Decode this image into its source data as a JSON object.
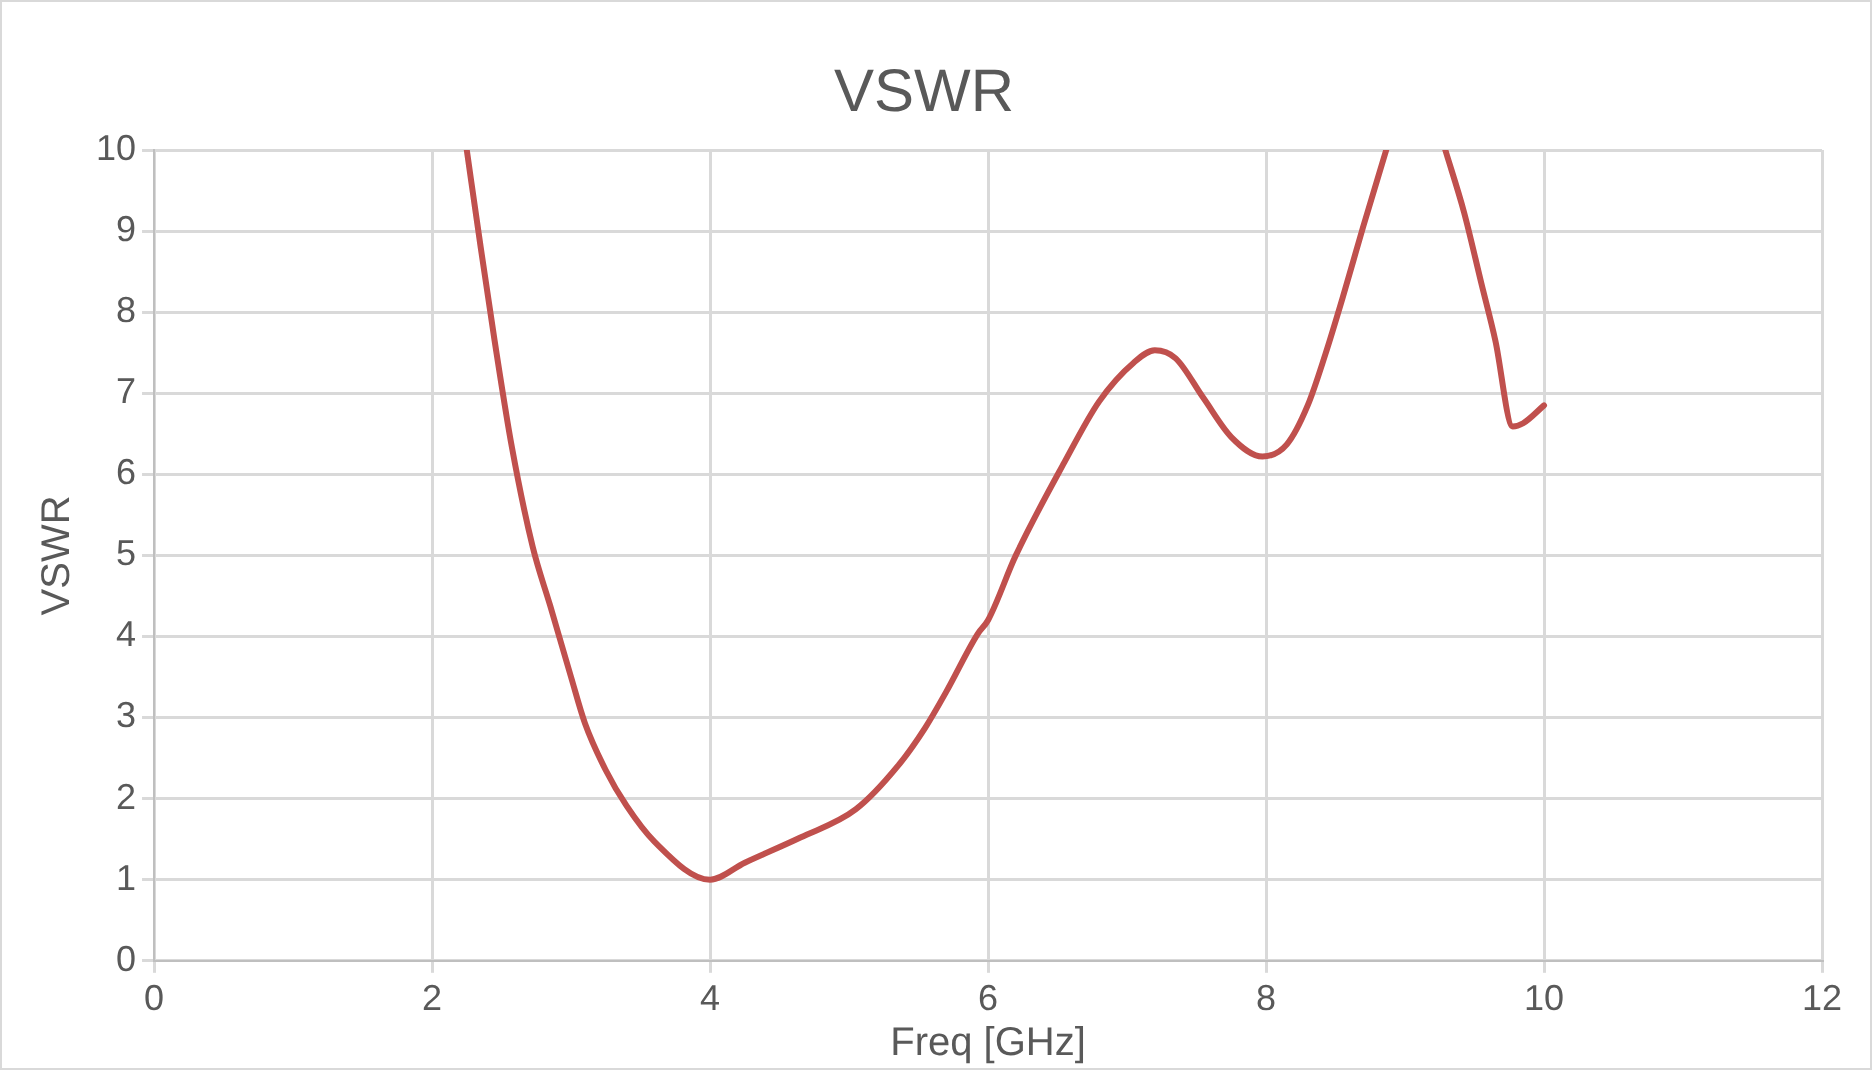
{
  "chart_data": {
    "type": "line",
    "title": "VSWR",
    "xlabel": "Freq [GHz]",
    "ylabel": "VSWR",
    "xlim": [
      0,
      12
    ],
    "xticks": [
      0,
      2,
      4,
      6,
      8,
      10,
      12
    ],
    "ylim": [
      0,
      10
    ],
    "yticks": [
      0,
      1,
      2,
      3,
      4,
      5,
      6,
      7,
      8,
      9,
      10
    ],
    "grid": true,
    "legend": false,
    "marker": "none",
    "line_style": "solid",
    "series": [
      {
        "color": "#c0504d",
        "x": [
          2.25,
          2.35,
          2.45,
          2.575,
          2.725,
          2.85,
          3.0,
          3.1,
          3.25,
          3.4,
          3.6,
          4.0,
          4.25,
          4.65,
          5.05,
          5.35,
          5.55,
          5.7,
          5.925,
          6.0,
          6.2,
          6.55,
          6.8,
          7.05,
          7.2,
          7.35,
          7.55,
          7.75,
          7.975,
          8.15,
          8.3,
          8.425,
          8.55,
          8.7,
          8.865,
          9.0,
          9.29,
          9.425,
          9.55,
          9.65,
          9.775,
          9.85,
          10.0
        ],
        "values": [
          10,
          8.8,
          7.65,
          6.33,
          5.1,
          4.38,
          3.5,
          2.93,
          2.35,
          1.91,
          1.47,
          1.0,
          1.21,
          1.52,
          1.87,
          2.4,
          2.88,
          3.32,
          4.03,
          4.2,
          5.0,
          6.15,
          6.9,
          7.38,
          7.53,
          7.43,
          6.94,
          6.46,
          6.22,
          6.37,
          6.85,
          7.47,
          8.17,
          9.06,
          10,
          null,
          10,
          9.23,
          8.35,
          7.65,
          6.59,
          6.63,
          6.85
        ]
      }
    ]
  }
}
